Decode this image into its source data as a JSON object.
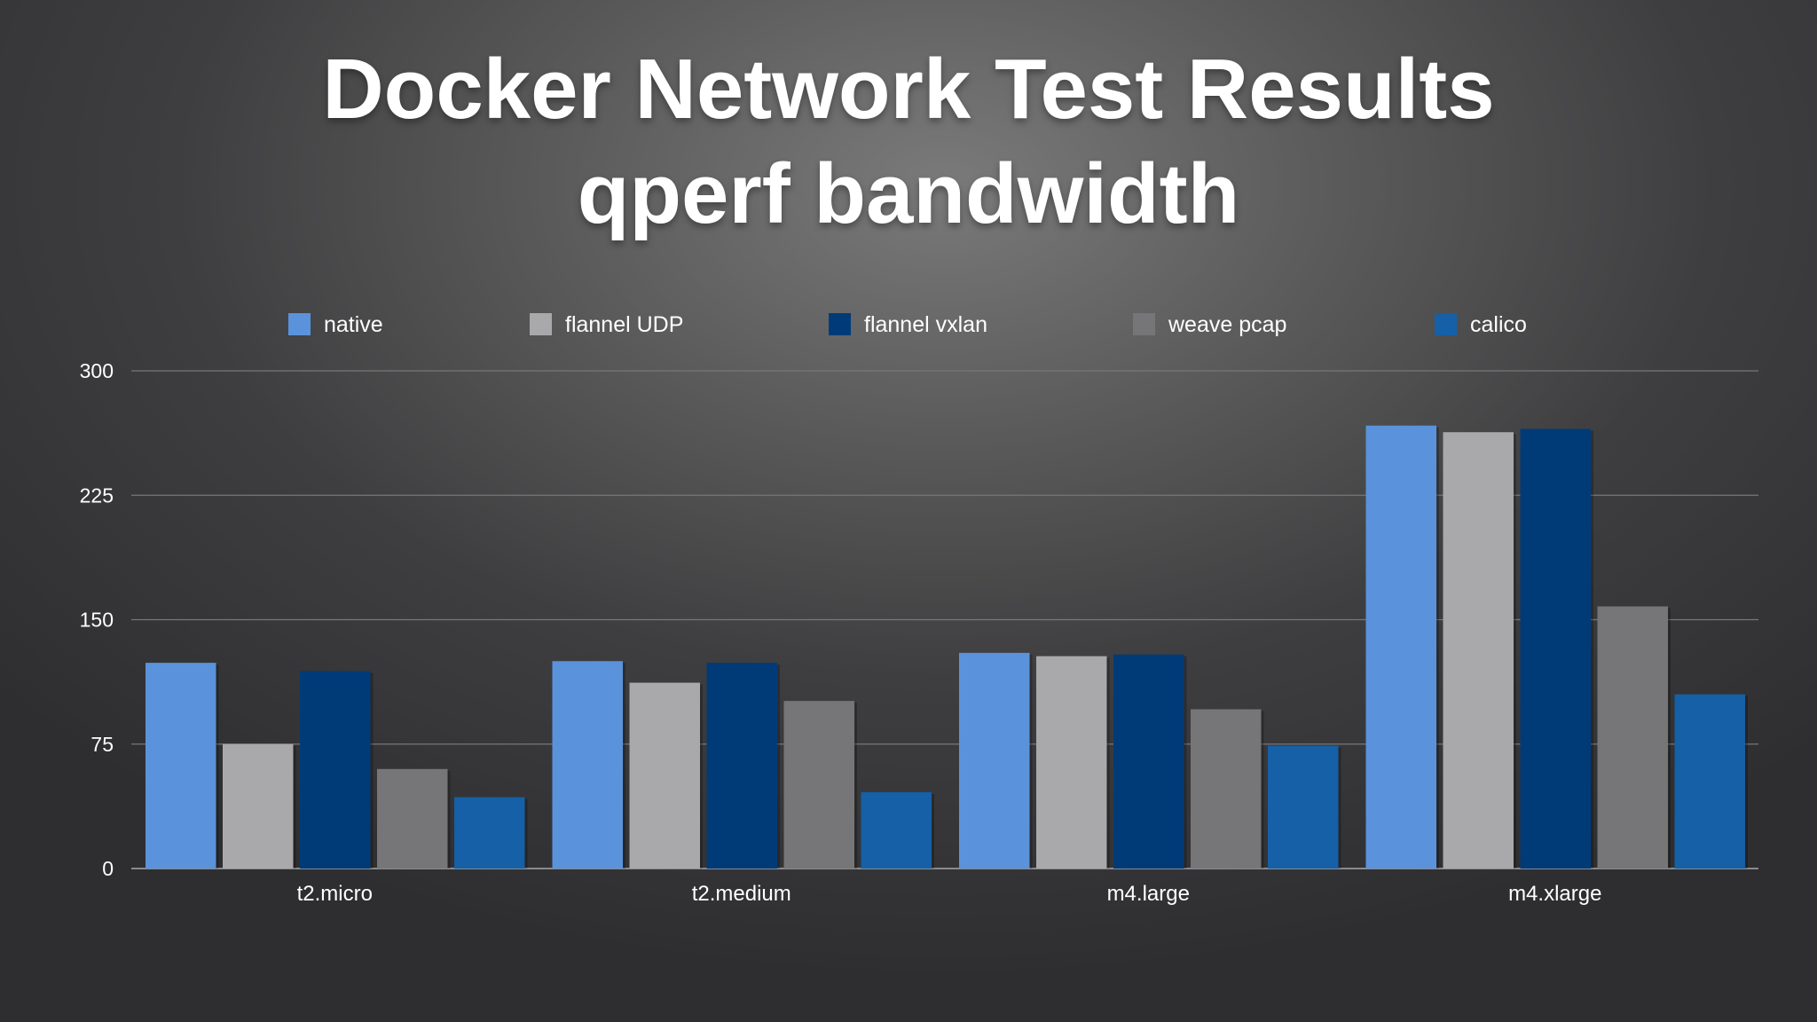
{
  "slide": {
    "title_line1": "Docker Network Test Results",
    "title_line2": "qperf bandwidth"
  },
  "chart_data": {
    "type": "bar",
    "categories": [
      "t2.micro",
      "t2.medium",
      "m4.large",
      "m4.xlarge"
    ],
    "series": [
      {
        "name": "native",
        "color": "#5a93db",
        "values": [
          124,
          125,
          130,
          267
        ]
      },
      {
        "name": "flannel UDP",
        "color": "#a9a9ab",
        "values": [
          75,
          112,
          128,
          263
        ]
      },
      {
        "name": "flannel vxlan",
        "color": "#003b78",
        "values": [
          119,
          124,
          129,
          265
        ]
      },
      {
        "name": "weave pcap",
        "color": "#767678",
        "values": [
          60,
          101,
          96,
          158
        ]
      },
      {
        "name": "calico",
        "color": "#1560a6",
        "values": [
          43,
          46,
          74,
          105
        ]
      }
    ],
    "yticks": [
      "0",
      "75",
      "150",
      "225",
      "300"
    ],
    "ylim": [
      0,
      300
    ],
    "grid": true,
    "legend_position": "top"
  }
}
